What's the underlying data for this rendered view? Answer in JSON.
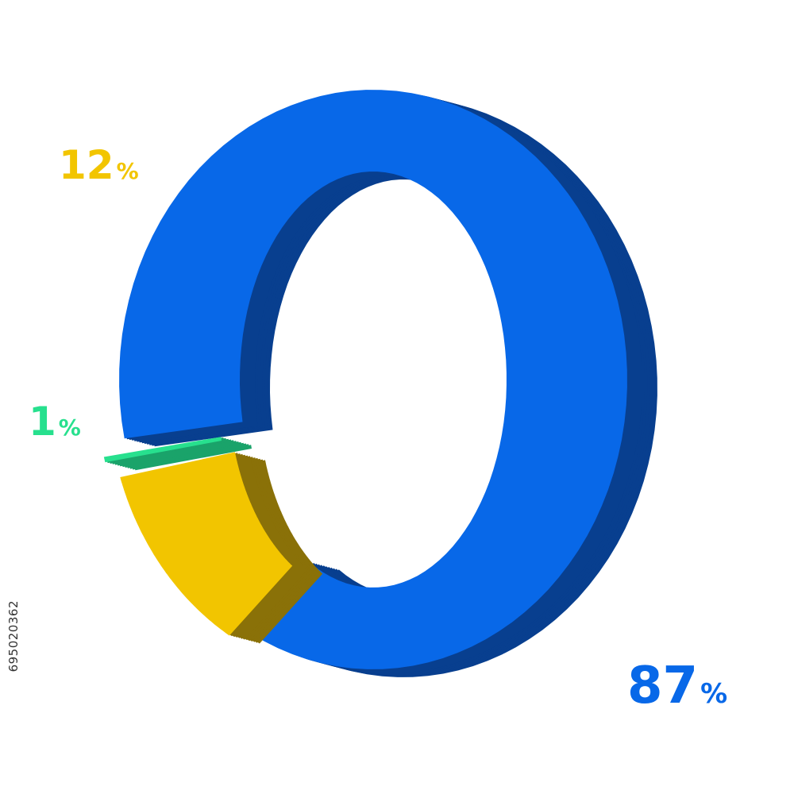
{
  "chart_data": {
    "type": "pie",
    "style": "3d-donut",
    "slices": [
      {
        "label": "87%",
        "value": 87,
        "color": "#0868e8",
        "side_color": "#083f8f"
      },
      {
        "label": "12%",
        "value": 12,
        "color": "#f2c500",
        "side_color": "#8a7108"
      },
      {
        "label": "1%",
        "value": 1,
        "color": "#27e08e",
        "side_color": "#1aa36a"
      }
    ],
    "legend": "none"
  },
  "stock_id": "695020362"
}
